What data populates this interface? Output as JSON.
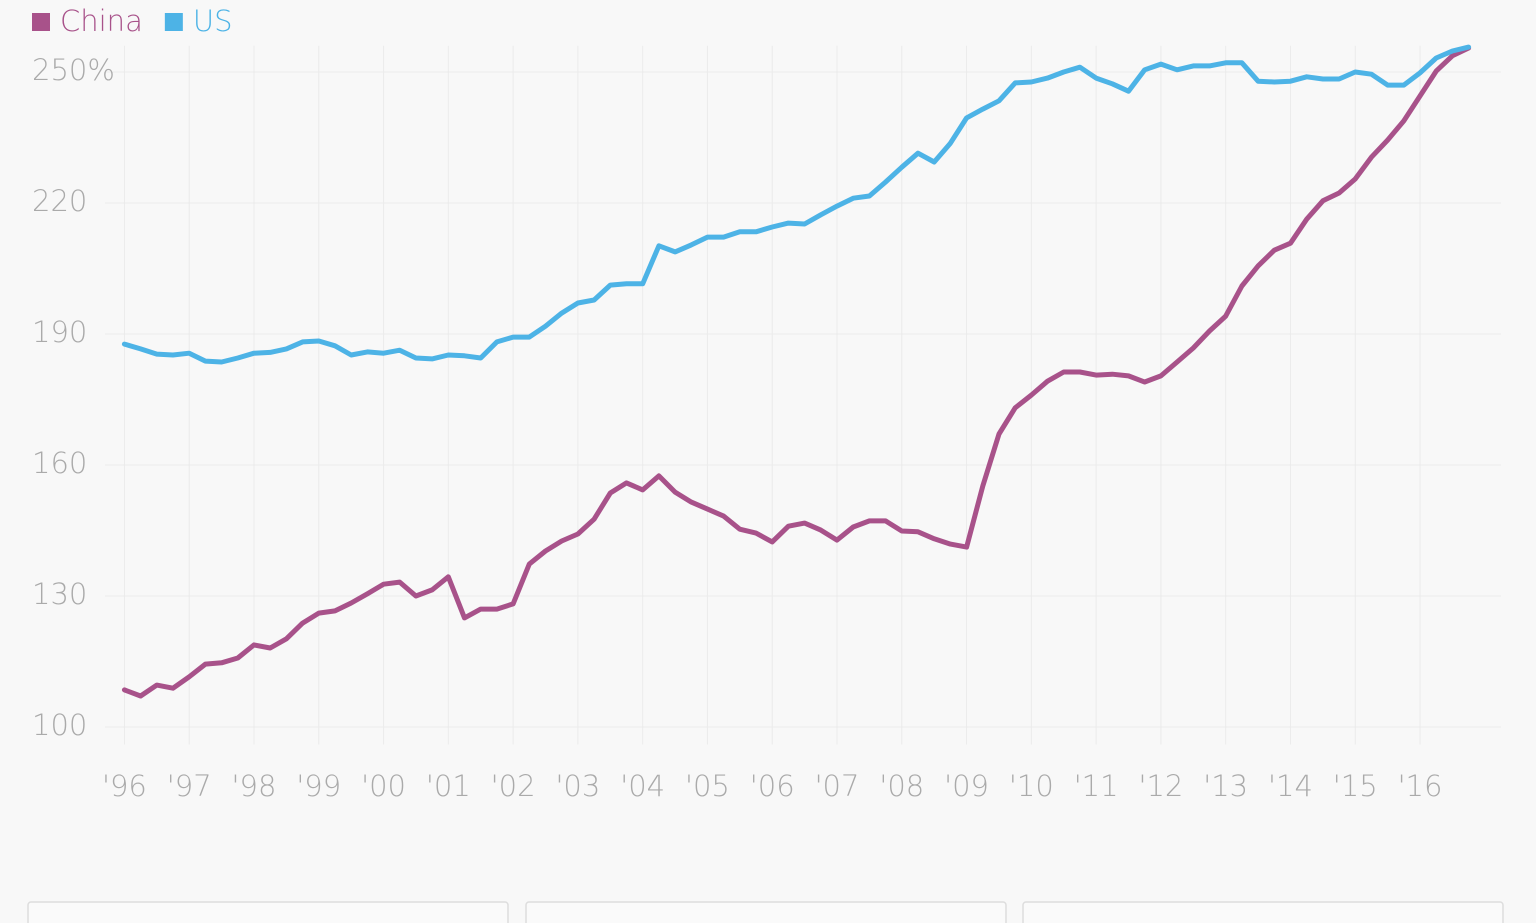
{
  "chart_data": {
    "type": "line",
    "x": [
      1996,
      1996.25,
      1996.5,
      1996.75,
      1997,
      1997.25,
      1997.5,
      1997.75,
      1998,
      1998.25,
      1998.5,
      1998.75,
      1999,
      1999.25,
      1999.5,
      1999.75,
      2000,
      2000.25,
      2000.5,
      2000.75,
      2001,
      2001.25,
      2001.5,
      2001.75,
      2002,
      2002.25,
      2002.5,
      2002.75,
      2003,
      2003.25,
      2003.5,
      2003.75,
      2004,
      2004.25,
      2004.5,
      2004.75,
      2005,
      2005.25,
      2005.5,
      2005.75,
      2006,
      2006.25,
      2006.5,
      2006.75,
      2007,
      2007.25,
      2007.5,
      2007.75,
      2008,
      2008.25,
      2008.5,
      2008.75,
      2009,
      2009.25,
      2009.5,
      2009.75,
      2010,
      2010.25,
      2010.5,
      2010.75,
      2011,
      2011.25,
      2011.5,
      2011.75,
      2012,
      2012.25,
      2012.5,
      2012.75,
      2013,
      2013.25,
      2013.5,
      2013.75,
      2014,
      2014.25,
      2014.5,
      2014.75,
      2015,
      2015.25,
      2015.5,
      2015.75,
      2016,
      2016.25,
      2016.5,
      2016.75
    ],
    "series": [
      {
        "name": "China",
        "color": "#a8528a",
        "values": [
          108.5,
          107.1,
          109.6,
          108.9,
          111.5,
          114.4,
          114.7,
          115.8,
          118.8,
          118.1,
          120.2,
          123.8,
          126.1,
          126.6,
          128.4,
          130.5,
          132.7,
          133.2,
          130.0,
          131.4,
          134.4,
          125.0,
          127.0,
          127.0,
          128.2,
          137.3,
          140.3,
          142.6,
          144.2,
          147.6,
          153.6,
          155.9,
          154.3,
          157.5,
          153.8,
          151.5,
          149.9,
          148.3,
          145.3,
          144.4,
          142.4,
          146.0,
          146.7,
          145.1,
          142.8,
          145.8,
          147.2,
          147.2,
          144.9,
          144.7,
          143.1,
          141.9,
          141.2,
          155.2,
          167.1,
          173.1,
          176.0,
          179.2,
          181.3,
          181.3,
          180.6,
          180.8,
          180.4,
          179.0,
          180.4,
          183.6,
          186.8,
          190.7,
          194.1,
          201.0,
          205.6,
          209.2,
          210.8,
          216.3,
          220.5,
          222.3,
          225.5,
          230.5,
          234.4,
          238.8,
          244.5,
          250.2,
          253.7,
          255.5
        ]
      },
      {
        "name": "US",
        "color": "#4db3e6",
        "values": [
          187.7,
          186.6,
          185.4,
          185.2,
          185.6,
          183.8,
          183.6,
          184.5,
          185.6,
          185.8,
          186.6,
          188.2,
          188.4,
          187.3,
          185.2,
          185.9,
          185.6,
          186.3,
          184.5,
          184.3,
          185.2,
          185.0,
          184.5,
          188.2,
          189.3,
          189.3,
          191.8,
          194.8,
          197.1,
          197.8,
          201.2,
          201.5,
          201.5,
          210.2,
          208.8,
          210.4,
          212.2,
          212.2,
          213.4,
          213.4,
          214.5,
          215.4,
          215.2,
          217.3,
          219.3,
          221.1,
          221.6,
          224.8,
          228.2,
          231.4,
          229.4,
          233.7,
          239.5,
          241.5,
          243.4,
          247.5,
          247.7,
          248.6,
          250.0,
          251.1,
          248.6,
          247.3,
          245.6,
          250.5,
          251.8,
          250.5,
          251.4,
          251.4,
          252.1,
          252.1,
          247.9,
          247.7,
          247.9,
          248.9,
          248.4,
          248.4,
          250.0,
          249.5,
          247.0,
          247.0,
          249.8,
          253.2,
          254.8,
          255.7
        ]
      }
    ],
    "xlim": [
      1995.7,
      2017.25
    ],
    "xticks": [
      {
        "value": 1996,
        "label": "'96"
      },
      {
        "value": 1997,
        "label": "'97"
      },
      {
        "value": 1998,
        "label": "'98"
      },
      {
        "value": 1999,
        "label": "'99"
      },
      {
        "value": 2000,
        "label": "'00"
      },
      {
        "value": 2001,
        "label": "'01"
      },
      {
        "value": 2002,
        "label": "'02"
      },
      {
        "value": 2003,
        "label": "'03"
      },
      {
        "value": 2004,
        "label": "'04"
      },
      {
        "value": 2005,
        "label": "'05"
      },
      {
        "value": 2006,
        "label": "'06"
      },
      {
        "value": 2007,
        "label": "'07"
      },
      {
        "value": 2008,
        "label": "'08"
      },
      {
        "value": 2009,
        "label": "'09"
      },
      {
        "value": 2010,
        "label": "'10"
      },
      {
        "value": 2011,
        "label": "'11"
      },
      {
        "value": 2012,
        "label": "'12"
      },
      {
        "value": 2013,
        "label": "'13"
      },
      {
        "value": 2014,
        "label": "'14"
      },
      {
        "value": 2015,
        "label": "'15"
      },
      {
        "value": 2016,
        "label": "'16"
      }
    ],
    "ylim": [
      96,
      256
    ],
    "yticks": [
      100,
      130,
      160,
      190,
      220,
      {
        "value": 250,
        "label": "250%"
      }
    ],
    "grid": true,
    "legend": "top-left"
  }
}
